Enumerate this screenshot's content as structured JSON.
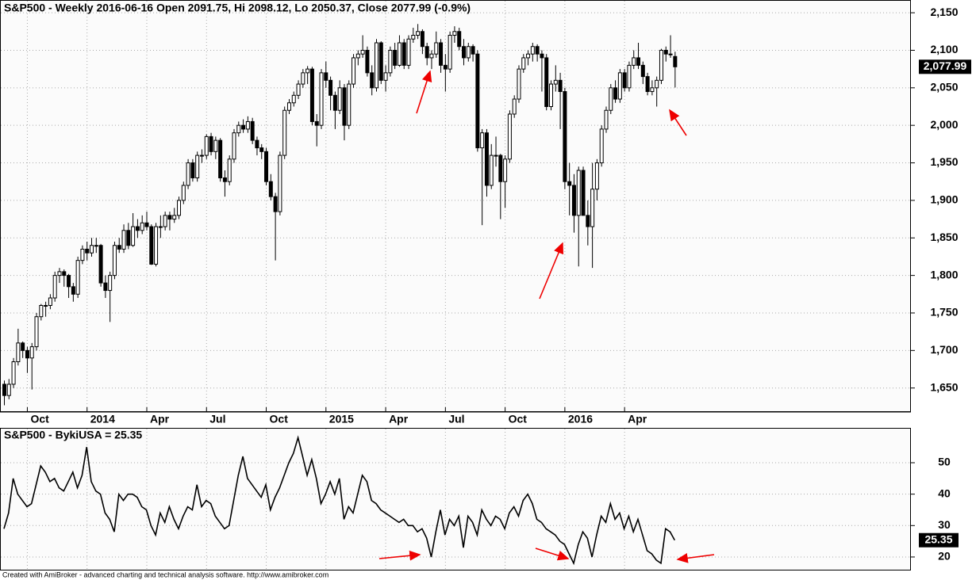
{
  "chart_data": [
    {
      "type": "candlestick",
      "title": "S&P500 - Weekly 2016-06-16 Open 2091.75, Hi 2098.12, Lo 2050.37, Close 2077.99 (-0.9%)",
      "ylim": [
        1618,
        2167
      ],
      "yticks": [
        {
          "value": 1650,
          "label": "1,650"
        },
        {
          "value": 1700,
          "label": "1,700"
        },
        {
          "value": 1750,
          "label": "1,750"
        },
        {
          "value": 1800,
          "label": "1,800"
        },
        {
          "value": 1850,
          "label": "1,850"
        },
        {
          "value": 1900,
          "label": "1,900"
        },
        {
          "value": 1950,
          "label": "1,950"
        },
        {
          "value": 2000,
          "label": "2,000"
        },
        {
          "value": 2050,
          "label": "2,050"
        },
        {
          "value": 2100,
          "label": "2,100"
        },
        {
          "value": 2150,
          "label": "2,150"
        }
      ],
      "xticks": [
        {
          "value": 5,
          "label": "Oct"
        },
        {
          "value": 18,
          "label": "2014"
        },
        {
          "value": 31,
          "label": "Apr"
        },
        {
          "value": 44,
          "label": "Jul"
        },
        {
          "value": 57,
          "label": "Oct"
        },
        {
          "value": 70,
          "label": "2015"
        },
        {
          "value": 83,
          "label": "Apr"
        },
        {
          "value": 96,
          "label": "Jul"
        },
        {
          "value": 109,
          "label": "Oct"
        },
        {
          "value": 122,
          "label": "2016"
        },
        {
          "value": 135,
          "label": "Apr"
        }
      ],
      "last_label": "2,077.99",
      "grid": true,
      "candles": [
        [
          1655,
          1660,
          1627,
          1640
        ],
        [
          1640,
          1662,
          1635,
          1655
        ],
        [
          1655,
          1690,
          1650,
          1685
        ],
        [
          1685,
          1729,
          1680,
          1710
        ],
        [
          1710,
          1712,
          1690,
          1700
        ],
        [
          1700,
          1705,
          1670,
          1690
        ],
        [
          1690,
          1710,
          1648,
          1705
        ],
        [
          1705,
          1750,
          1700,
          1745
        ],
        [
          1745,
          1762,
          1740,
          1760
        ],
        [
          1760,
          1765,
          1745,
          1760
        ],
        [
          1760,
          1775,
          1755,
          1770
        ],
        [
          1770,
          1805,
          1765,
          1800
        ],
        [
          1800,
          1810,
          1790,
          1805
        ],
        [
          1805,
          1808,
          1785,
          1800
        ],
        [
          1800,
          1802,
          1770,
          1785
        ],
        [
          1785,
          1790,
          1765,
          1775
        ],
        [
          1775,
          1825,
          1770,
          1820
        ],
        [
          1820,
          1840,
          1815,
          1835
        ],
        [
          1835,
          1845,
          1820,
          1830
        ],
        [
          1830,
          1850,
          1825,
          1840
        ],
        [
          1840,
          1850,
          1830,
          1840
        ],
        [
          1840,
          1842,
          1785,
          1790
        ],
        [
          1790,
          1800,
          1770,
          1780
        ],
        [
          1780,
          1805,
          1738,
          1800
        ],
        [
          1800,
          1845,
          1795,
          1840
        ],
        [
          1840,
          1850,
          1830,
          1835
        ],
        [
          1835,
          1868,
          1830,
          1860
        ],
        [
          1860,
          1870,
          1835,
          1840
        ],
        [
          1840,
          1883,
          1838,
          1865
        ],
        [
          1865,
          1875,
          1850,
          1860
        ],
        [
          1860,
          1880,
          1855,
          1870
        ],
        [
          1870,
          1885,
          1860,
          1865
        ],
        [
          1865,
          1868,
          1814,
          1815
        ],
        [
          1815,
          1870,
          1812,
          1865
        ],
        [
          1865,
          1880,
          1850,
          1865
        ],
        [
          1865,
          1885,
          1860,
          1880
        ],
        [
          1880,
          1885,
          1860,
          1875
        ],
        [
          1875,
          1890,
          1870,
          1880
        ],
        [
          1880,
          1905,
          1875,
          1900
        ],
        [
          1900,
          1925,
          1895,
          1920
        ],
        [
          1920,
          1955,
          1915,
          1950
        ],
        [
          1950,
          1955,
          1925,
          1930
        ],
        [
          1930,
          1965,
          1925,
          1960
        ],
        [
          1960,
          1968,
          1950,
          1960
        ],
        [
          1960,
          1988,
          1955,
          1985
        ],
        [
          1985,
          1990,
          1960,
          1965
        ],
        [
          1965,
          1985,
          1955,
          1980
        ],
        [
          1980,
          1983,
          1925,
          1930
        ],
        [
          1930,
          1940,
          1905,
          1925
        ],
        [
          1925,
          1960,
          1920,
          1955
        ],
        [
          1955,
          1995,
          1950,
          1990
        ],
        [
          1990,
          2005,
          1985,
          2000
        ],
        [
          2000,
          2008,
          1990,
          1995
        ],
        [
          1995,
          2012,
          1990,
          2005
        ],
        [
          2005,
          2010,
          1975,
          1980
        ],
        [
          1980,
          1985,
          1960,
          1970
        ],
        [
          1970,
          1975,
          1955,
          1965
        ],
        [
          1965,
          1970,
          1920,
          1925
        ],
        [
          1925,
          1935,
          1900,
          1905
        ],
        [
          1905,
          1910,
          1820,
          1885
        ],
        [
          1885,
          1965,
          1880,
          1960
        ],
        [
          1960,
          2025,
          1955,
          2020
        ],
        [
          2020,
          2035,
          2015,
          2030
        ],
        [
          2030,
          2045,
          2025,
          2040
        ],
        [
          2040,
          2060,
          2035,
          2055
        ],
        [
          2055,
          2075,
          2050,
          2070
        ],
        [
          2070,
          2079,
          2055,
          2075
        ],
        [
          2075,
          2078,
          2000,
          2005
        ],
        [
          2005,
          2015,
          1972,
          2000
        ],
        [
          2000,
          2075,
          1995,
          2070
        ],
        [
          2070,
          2085,
          2050,
          2060
        ],
        [
          2060,
          2065,
          2020,
          2040
        ],
        [
          2040,
          2045,
          1995,
          2020
        ],
        [
          2020,
          2060,
          2015,
          2050
        ],
        [
          2050,
          2055,
          1980,
          2000
        ],
        [
          2000,
          2060,
          1995,
          2055
        ],
        [
          2055,
          2095,
          2050,
          2090
        ],
        [
          2090,
          2100,
          2080,
          2095
        ],
        [
          2095,
          2120,
          2090,
          2100
        ],
        [
          2100,
          2105,
          2065,
          2070
        ],
        [
          2070,
          2080,
          2040,
          2050
        ],
        [
          2050,
          2115,
          2045,
          2110
        ],
        [
          2110,
          2112,
          2055,
          2060
        ],
        [
          2060,
          2080,
          2045,
          2070
        ],
        [
          2070,
          2105,
          2065,
          2100
        ],
        [
          2100,
          2110,
          2075,
          2080
        ],
        [
          2080,
          2120,
          2078,
          2110
        ],
        [
          2110,
          2115,
          2075,
          2080
        ],
        [
          2080,
          2120,
          2075,
          2115
        ],
        [
          2115,
          2130,
          2110,
          2120
        ],
        [
          2120,
          2135,
          2115,
          2125
        ],
        [
          2125,
          2128,
          2095,
          2105
        ],
        [
          2105,
          2110,
          2080,
          2090
        ],
        [
          2090,
          2100,
          2075,
          2095
        ],
        [
          2095,
          2125,
          2090,
          2110
        ],
        [
          2110,
          2115,
          2070,
          2080
        ],
        [
          2080,
          2095,
          2045,
          2075
        ],
        [
          2075,
          2125,
          2070,
          2120
        ],
        [
          2120,
          2132,
          2110,
          2125
        ],
        [
          2125,
          2130,
          2100,
          2105
        ],
        [
          2105,
          2115,
          2080,
          2090
        ],
        [
          2090,
          2110,
          2085,
          2105
        ],
        [
          2105,
          2108,
          2085,
          2095
        ],
        [
          2095,
          2100,
          1965,
          1970
        ],
        [
          1970,
          1995,
          1867,
          1990
        ],
        [
          1990,
          1995,
          1905,
          1920
        ],
        [
          1920,
          1975,
          1915,
          1960
        ],
        [
          1960,
          1985,
          1945,
          1960
        ],
        [
          1960,
          1962,
          1875,
          1925
        ],
        [
          1925,
          1960,
          1890,
          1955
        ],
        [
          1955,
          2020,
          1950,
          2015
        ],
        [
          2015,
          2040,
          2010,
          2035
        ],
        [
          2035,
          2080,
          2030,
          2075
        ],
        [
          2075,
          2095,
          2070,
          2090
        ],
        [
          2090,
          2100,
          2080,
          2095
        ],
        [
          2095,
          2110,
          2085,
          2105
        ],
        [
          2105,
          2108,
          2085,
          2095
        ],
        [
          2095,
          2100,
          2045,
          2090
        ],
        [
          2090,
          2095,
          2020,
          2025
        ],
        [
          2025,
          2060,
          2020,
          2055
        ],
        [
          2055,
          2080,
          2045,
          2060
        ],
        [
          2060,
          2070,
          1995,
          2045
        ],
        [
          2045,
          2050,
          1915,
          1925
        ],
        [
          1925,
          1950,
          1880,
          1920
        ],
        [
          1920,
          1935,
          1857,
          1880
        ],
        [
          1880,
          1945,
          1812,
          1940
        ],
        [
          1940,
          1945,
          1880,
          1880
        ],
        [
          1880,
          1900,
          1840,
          1865
        ],
        [
          1865,
          1950,
          1810,
          1915
        ],
        [
          1915,
          1955,
          1900,
          1950
        ],
        [
          1950,
          2000,
          1945,
          1995
        ],
        [
          1995,
          2025,
          1990,
          2020
        ],
        [
          2020,
          2055,
          2015,
          2050
        ],
        [
          2050,
          2060,
          2030,
          2035
        ],
        [
          2035,
          2075,
          2030,
          2070
        ],
        [
          2070,
          2075,
          2045,
          2050
        ],
        [
          2050,
          2085,
          2045,
          2080
        ],
        [
          2080,
          2100,
          2075,
          2090
        ],
        [
          2090,
          2110,
          2075,
          2080
        ],
        [
          2080,
          2085,
          2055,
          2065
        ],
        [
          2065,
          2070,
          2040,
          2045
        ],
        [
          2045,
          2060,
          2040,
          2050
        ],
        [
          2050,
          2065,
          2025,
          2060
        ],
        [
          2060,
          2102,
          2055,
          2100
        ],
        [
          2100,
          2105,
          2085,
          2095
        ],
        [
          2095,
          2120,
          2090,
          2095
        ],
        [
          2091.75,
          2098.12,
          2050.37,
          2077.99
        ]
      ]
    },
    {
      "type": "line",
      "title": "S&P500 - BykiUSA = 25.35",
      "ylim": [
        15.7,
        61.1
      ],
      "yticks": [
        20,
        30,
        40,
        50
      ],
      "grid": true,
      "color": "#000000",
      "values": [
        29,
        34,
        45,
        40,
        38,
        36,
        37,
        43,
        49,
        47,
        44,
        45,
        42,
        41,
        44,
        47,
        42,
        46,
        55,
        44,
        41,
        40,
        34,
        32,
        28,
        40,
        38,
        40,
        40,
        39,
        36,
        35,
        30,
        27,
        34,
        31,
        36,
        32,
        29,
        33,
        36,
        35,
        43,
        36,
        38,
        37,
        33,
        31,
        29,
        30,
        38,
        46,
        52,
        45,
        43,
        41,
        39,
        43,
        35,
        39,
        42,
        46,
        50,
        53,
        58,
        52,
        46,
        51,
        45,
        37,
        40,
        44,
        40,
        45,
        32,
        36,
        34,
        40,
        46,
        44,
        38,
        37,
        35,
        34,
        33,
        32,
        31,
        32,
        30,
        30,
        28,
        29,
        26,
        20,
        28,
        35,
        27,
        32,
        30,
        33,
        23,
        33,
        31,
        27,
        35,
        32,
        30,
        33,
        32,
        29,
        34,
        36,
        33,
        38,
        40,
        37,
        32,
        31,
        29,
        28,
        27,
        25,
        24,
        21,
        18,
        24,
        28,
        26,
        20,
        27,
        33,
        31,
        37,
        32,
        34,
        29,
        33,
        28,
        32,
        27,
        22,
        21,
        19,
        18,
        29,
        28,
        25.35
      ]
    }
  ],
  "footer": "Created with AmiBroker - advanced charting and technical analysis software. http://www.amibroker.com"
}
